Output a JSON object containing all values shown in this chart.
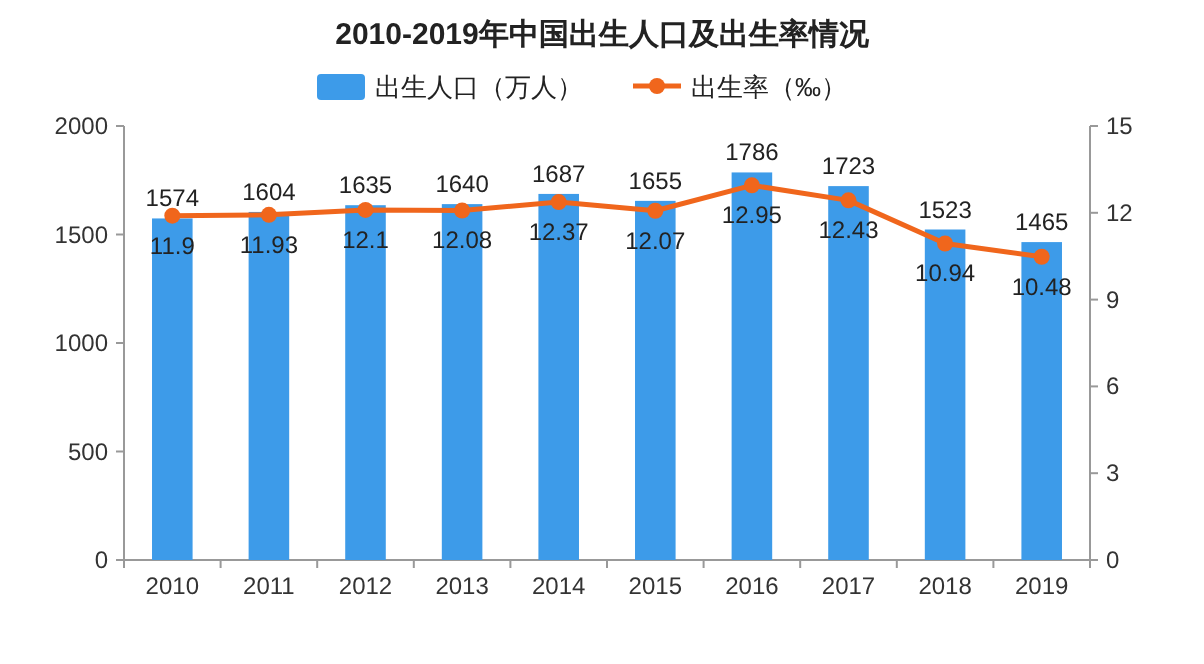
{
  "chart_data": {
    "type": "bar",
    "title": "2010-2019年中国出生人口及出生率情况",
    "categories": [
      "2010",
      "2011",
      "2012",
      "2013",
      "2014",
      "2015",
      "2016",
      "2017",
      "2018",
      "2019"
    ],
    "series": [
      {
        "name": "出生人口（万人）",
        "color": "#3d9be9",
        "values": [
          1574,
          1604,
          1635,
          1640,
          1687,
          1655,
          1786,
          1723,
          1523,
          1465
        ]
      },
      {
        "name": "出生率（‰）",
        "type": "line",
        "axis": "y2",
        "color": "#f0661c",
        "values": [
          11.9,
          11.93,
          12.1,
          12.08,
          12.37,
          12.07,
          12.95,
          12.43,
          10.94,
          10.48
        ]
      }
    ],
    "ylim": [
      0,
      2000
    ],
    "yticks": [
      0,
      500,
      1000,
      1500,
      2000
    ],
    "y2lim": [
      0,
      15
    ],
    "y2ticks": [
      0,
      3,
      6,
      9,
      12,
      15
    ],
    "data_labels": true,
    "legend": "top",
    "marker": "circle",
    "line_style": "solid"
  }
}
